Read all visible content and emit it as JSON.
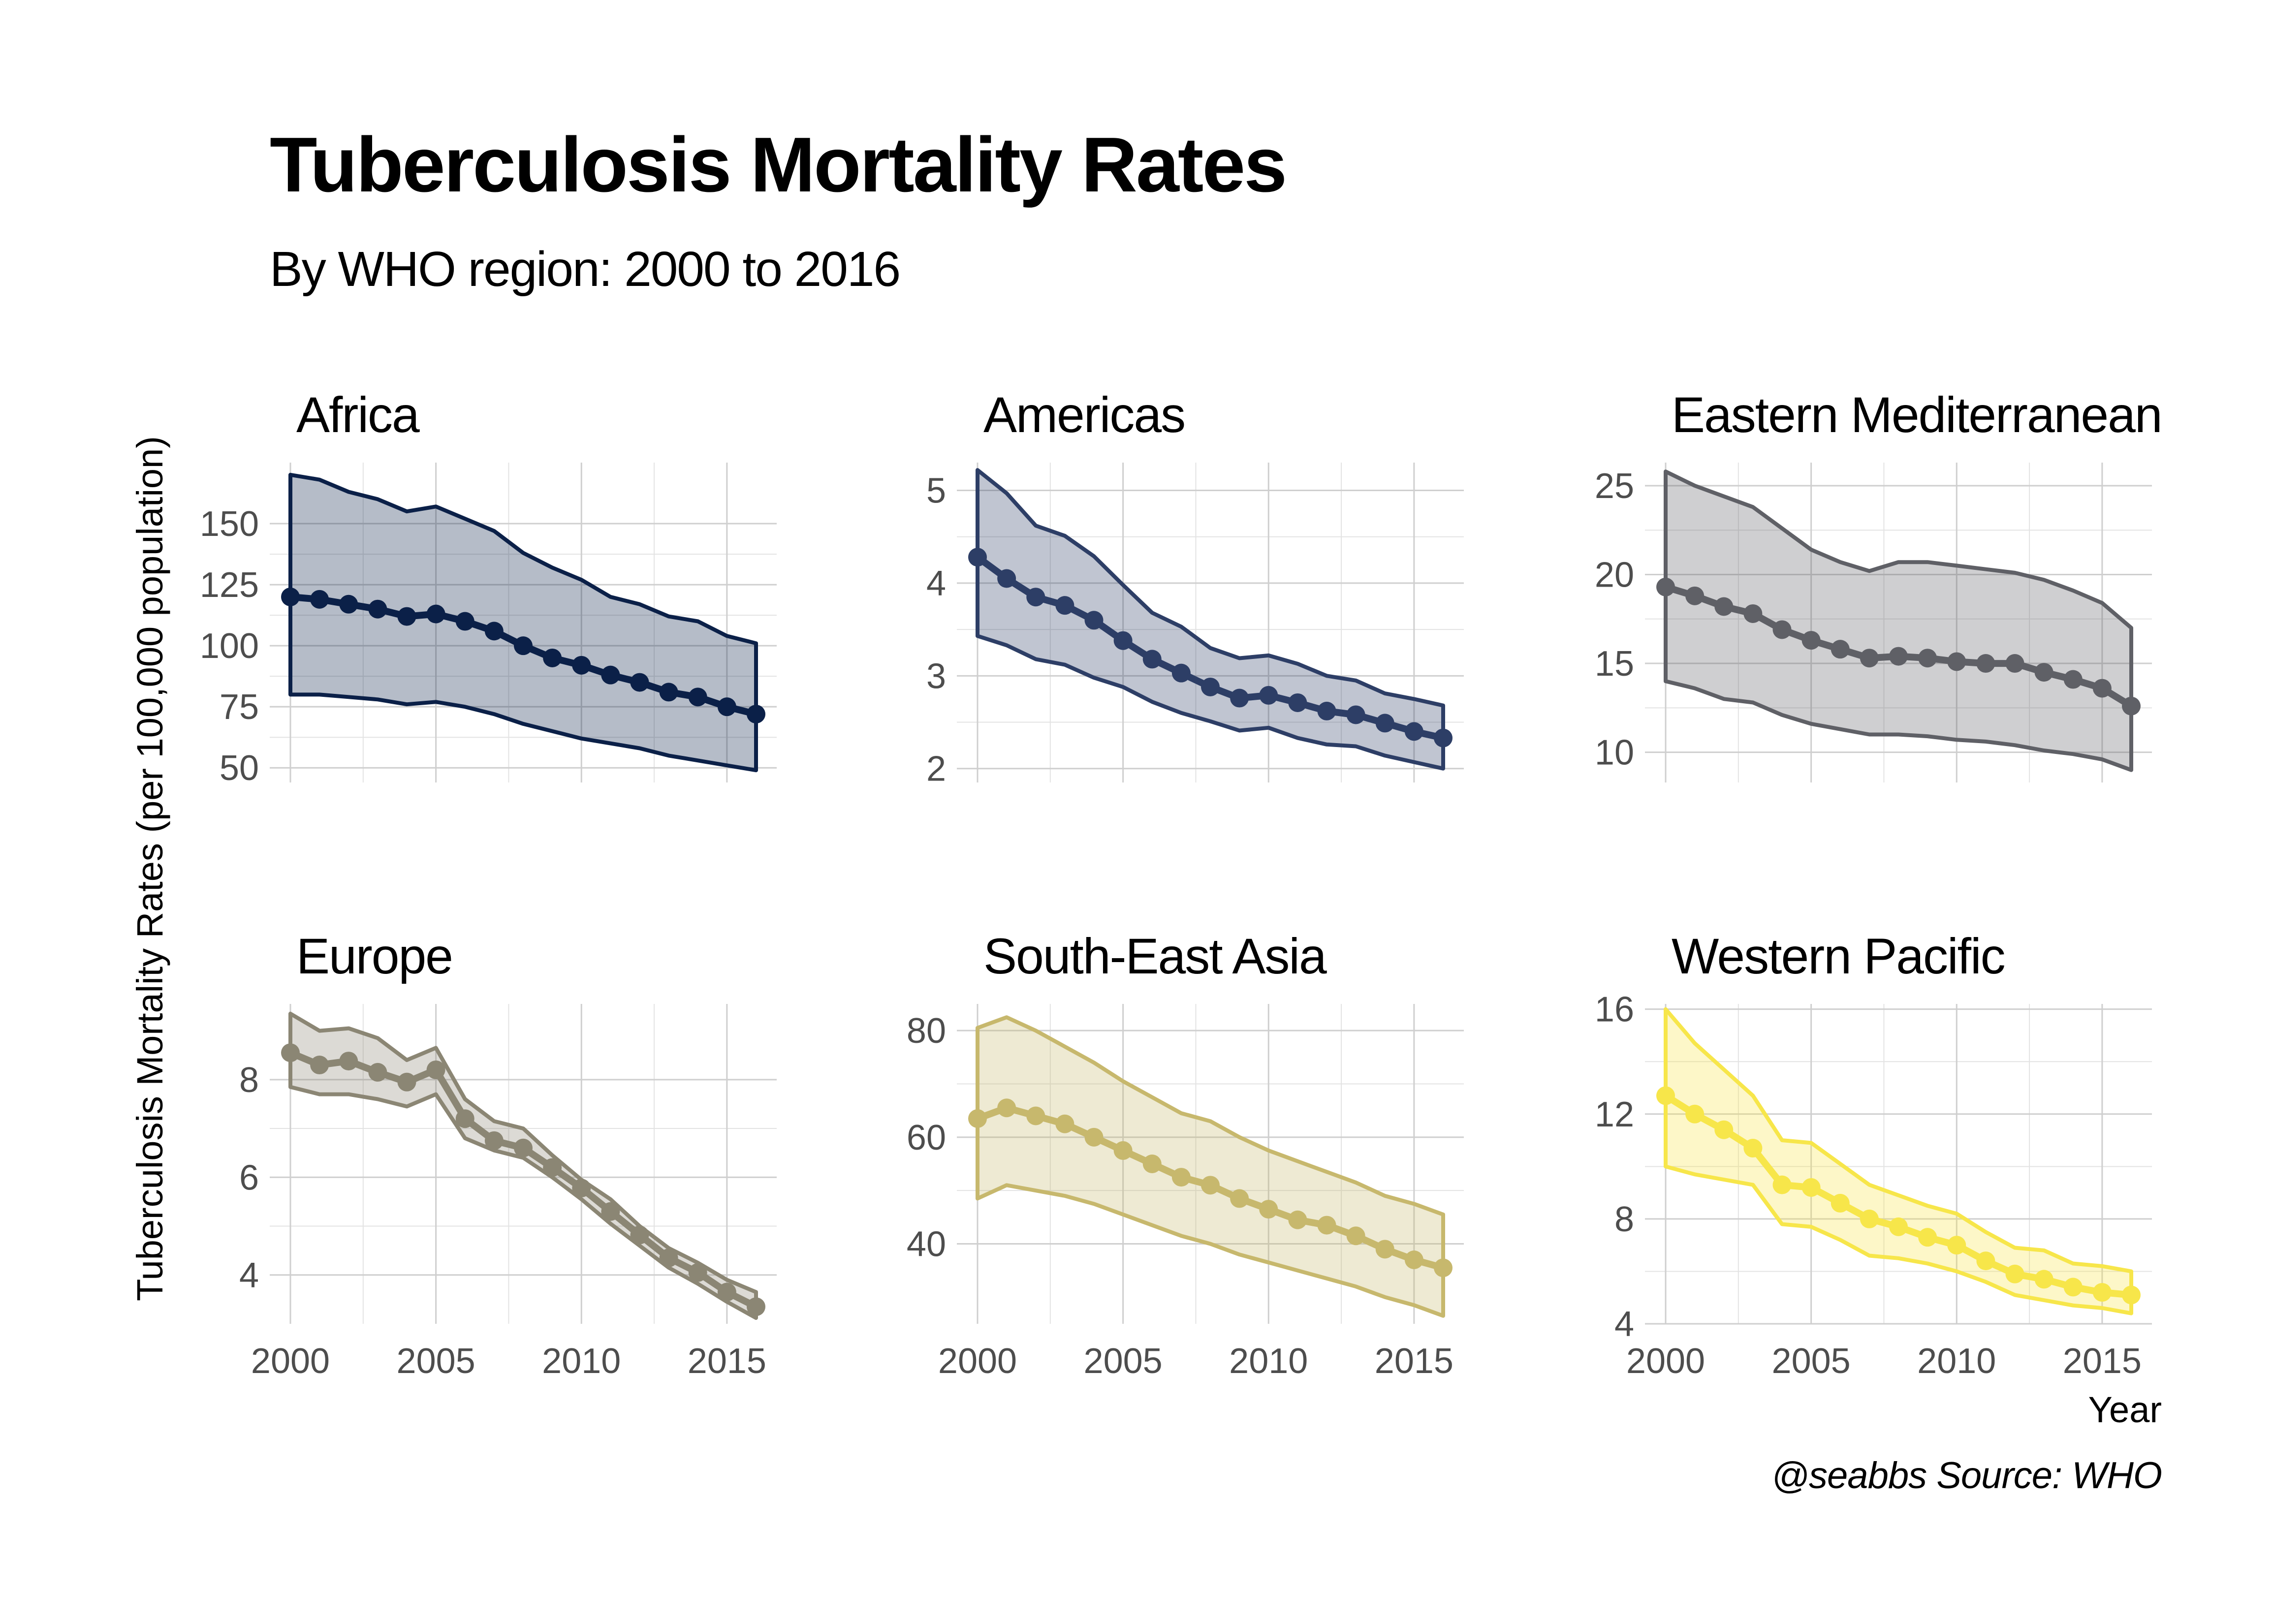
{
  "title": "Tuberculosis Mortality Rates",
  "subtitle": "By WHO region: 2000 to 2016",
  "caption": "@seabbs Source: WHO",
  "chart_data": {
    "type": "line",
    "layout": "facet-grid-2x3",
    "xlabel": "Year",
    "ylabel": "Tuberculosis Mortality Rates (per 100,000 population)",
    "x": [
      2000,
      2001,
      2002,
      2003,
      2004,
      2005,
      2006,
      2007,
      2008,
      2009,
      2010,
      2011,
      2012,
      2013,
      2014,
      2015,
      2016
    ],
    "x_ticks": [
      2000,
      2005,
      2010,
      2015
    ],
    "grid": true,
    "legend": "none",
    "band": "shaded uncertainty interval (lower to upper bound) around the point estimate",
    "facets": [
      {
        "name": "Africa",
        "color": "#0b2048",
        "ylim": [
          44,
          175
        ],
        "y_ticks": [
          50,
          75,
          100,
          125,
          150
        ],
        "y_ticks_labels": [
          "50",
          "75",
          "100",
          "125",
          "150"
        ],
        "values": [
          120,
          119,
          117,
          115,
          112,
          113,
          110,
          106,
          100,
          95,
          92,
          88,
          85,
          81,
          79,
          75,
          72
        ],
        "lower": [
          80,
          80,
          79,
          78,
          76,
          77,
          75,
          72,
          68,
          65,
          62,
          60,
          58,
          55,
          53,
          51,
          49
        ],
        "upper": [
          170,
          168,
          163,
          160,
          155,
          157,
          152,
          147,
          138,
          132,
          127,
          120,
          117,
          112,
          110,
          104,
          101
        ]
      },
      {
        "name": "Americas",
        "color": "#2d3e66",
        "ylim": [
          1.85,
          5.3
        ],
        "y_ticks": [
          2,
          3,
          4,
          5
        ],
        "y_ticks_labels": [
          "2",
          "3",
          "4",
          "5"
        ],
        "values": [
          4.28,
          4.05,
          3.85,
          3.76,
          3.6,
          3.38,
          3.18,
          3.03,
          2.88,
          2.76,
          2.79,
          2.71,
          2.62,
          2.58,
          2.49,
          2.4,
          2.33
        ],
        "lower": [
          3.43,
          3.33,
          3.18,
          3.12,
          2.98,
          2.88,
          2.72,
          2.6,
          2.51,
          2.41,
          2.44,
          2.33,
          2.26,
          2.24,
          2.14,
          2.07,
          2.0
        ],
        "upper": [
          5.22,
          4.97,
          4.62,
          4.51,
          4.29,
          3.98,
          3.68,
          3.53,
          3.3,
          3.19,
          3.22,
          3.13,
          3.0,
          2.95,
          2.81,
          2.75,
          2.68
        ]
      },
      {
        "name": "Eastern Mediterranean",
        "color": "#5f6066",
        "ylim": [
          8.3,
          26.3
        ],
        "y_ticks": [
          10,
          15,
          20,
          25
        ],
        "y_ticks_labels": [
          "10",
          "15",
          "20",
          "25"
        ],
        "values": [
          19.3,
          18.8,
          18.2,
          17.8,
          16.9,
          16.3,
          15.8,
          15.3,
          15.4,
          15.3,
          15.1,
          15.0,
          15.0,
          14.5,
          14.1,
          13.6,
          12.6
        ],
        "lower": [
          14.0,
          13.6,
          13.0,
          12.8,
          12.1,
          11.6,
          11.3,
          11.0,
          11.0,
          10.9,
          10.7,
          10.6,
          10.4,
          10.1,
          9.9,
          9.6,
          9.0
        ],
        "upper": [
          25.8,
          25.0,
          24.4,
          23.8,
          22.6,
          21.4,
          20.7,
          20.2,
          20.7,
          20.7,
          20.5,
          20.3,
          20.1,
          19.7,
          19.1,
          18.4,
          17.0
        ]
      },
      {
        "name": "Europe",
        "color": "#8b8674",
        "ylim": [
          3.0,
          9.55
        ],
        "y_ticks": [
          4,
          6,
          8
        ],
        "y_ticks_labels": [
          "4",
          "6",
          "8"
        ],
        "values": [
          8.55,
          8.3,
          8.38,
          8.15,
          7.95,
          8.2,
          7.2,
          6.75,
          6.6,
          6.2,
          5.78,
          5.3,
          4.82,
          4.35,
          4.05,
          3.65,
          3.35
        ],
        "lower": [
          7.85,
          7.7,
          7.7,
          7.6,
          7.45,
          7.7,
          6.8,
          6.55,
          6.4,
          6.0,
          5.55,
          5.05,
          4.6,
          4.15,
          3.82,
          3.45,
          3.12
        ],
        "upper": [
          9.35,
          9.0,
          9.05,
          8.85,
          8.4,
          8.65,
          7.6,
          7.15,
          7.0,
          6.45,
          5.95,
          5.55,
          5.0,
          4.55,
          4.25,
          3.9,
          3.65
        ]
      },
      {
        "name": "South-East Asia",
        "color": "#c7b86d",
        "ylim": [
          25,
          85
        ],
        "y_ticks": [
          40,
          60,
          80
        ],
        "y_ticks_labels": [
          "40",
          "60",
          "80"
        ],
        "values": [
          63.5,
          65.5,
          64.0,
          62.5,
          60.0,
          57.5,
          55.0,
          52.5,
          51.0,
          48.5,
          46.5,
          44.5,
          43.5,
          41.5,
          39.0,
          37.0,
          35.5
        ],
        "lower": [
          48.5,
          51.0,
          50.0,
          49.0,
          47.5,
          45.5,
          43.5,
          41.5,
          40.0,
          38.0,
          36.5,
          35.0,
          33.5,
          32.0,
          30.0,
          28.5,
          26.5
        ],
        "upper": [
          80.5,
          82.5,
          80.0,
          77.0,
          74.0,
          70.5,
          67.5,
          64.5,
          63.0,
          60.0,
          57.5,
          55.5,
          53.5,
          51.5,
          49.0,
          47.5,
          45.5
        ]
      },
      {
        "name": "Western Pacific",
        "color": "#f7e64a",
        "ylim": [
          4.0,
          16.2
        ],
        "y_ticks": [
          4,
          8,
          12,
          16
        ],
        "y_ticks_labels": [
          "4",
          "8",
          "12",
          "16"
        ],
        "values": [
          12.7,
          12.0,
          11.4,
          10.7,
          9.3,
          9.2,
          8.6,
          8.0,
          7.7,
          7.3,
          7.0,
          6.4,
          5.9,
          5.7,
          5.4,
          5.2,
          5.1
        ],
        "lower": [
          10.0,
          9.7,
          9.5,
          9.3,
          7.8,
          7.7,
          7.2,
          6.6,
          6.5,
          6.3,
          6.0,
          5.6,
          5.1,
          4.9,
          4.7,
          4.6,
          4.4
        ],
        "upper": [
          16.0,
          14.7,
          13.7,
          12.7,
          11.0,
          10.9,
          10.1,
          9.3,
          8.9,
          8.5,
          8.2,
          7.5,
          6.9,
          6.8,
          6.3,
          6.2,
          6.0
        ]
      }
    ]
  }
}
